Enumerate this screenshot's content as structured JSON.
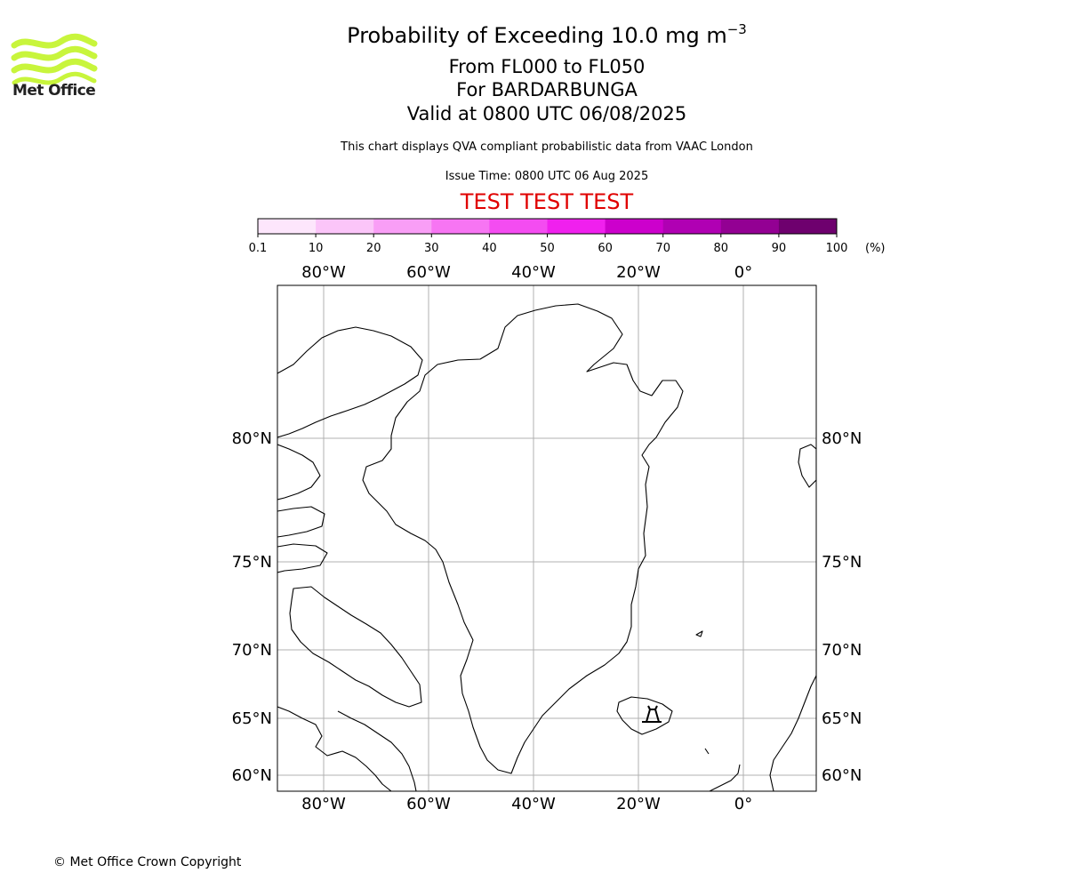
{
  "header": {
    "title_main": "Probability of Exceeding 10.0 mg m",
    "title_sup": "−3",
    "title_levels": "From FL000 to FL050",
    "title_volcano": "For BARDARBUNGA",
    "title_valid": "Valid at 0800 UTC 06/08/2025",
    "subtitle": "This chart displays QVA compliant probabilistic data from VAAC London",
    "issue_time": "Issue Time: 0800 UTC 06 Aug 2025",
    "test_banner": "TEST TEST TEST"
  },
  "logo": {
    "text": "Met Office",
    "color": "#c8f53c"
  },
  "colorbar": {
    "ticks": [
      "0.1",
      "10",
      "20",
      "30",
      "40",
      "50",
      "60",
      "70",
      "80",
      "90",
      "100"
    ],
    "unit": "(%)",
    "colors": [
      "#fde6fc",
      "#fbc5f9",
      "#f99ef6",
      "#f775f3",
      "#f44cf1",
      "#f020ee",
      "#cc00cc",
      "#b000b3",
      "#930093",
      "#6e006e"
    ]
  },
  "map": {
    "lon_labels": [
      "80°W",
      "60°W",
      "40°W",
      "20°W",
      "0°"
    ],
    "lat_labels": [
      "80°N",
      "75°N",
      "70°N",
      "65°N",
      "60°N"
    ]
  },
  "footer": {
    "copyright": "© Met Office Crown Copyright"
  }
}
